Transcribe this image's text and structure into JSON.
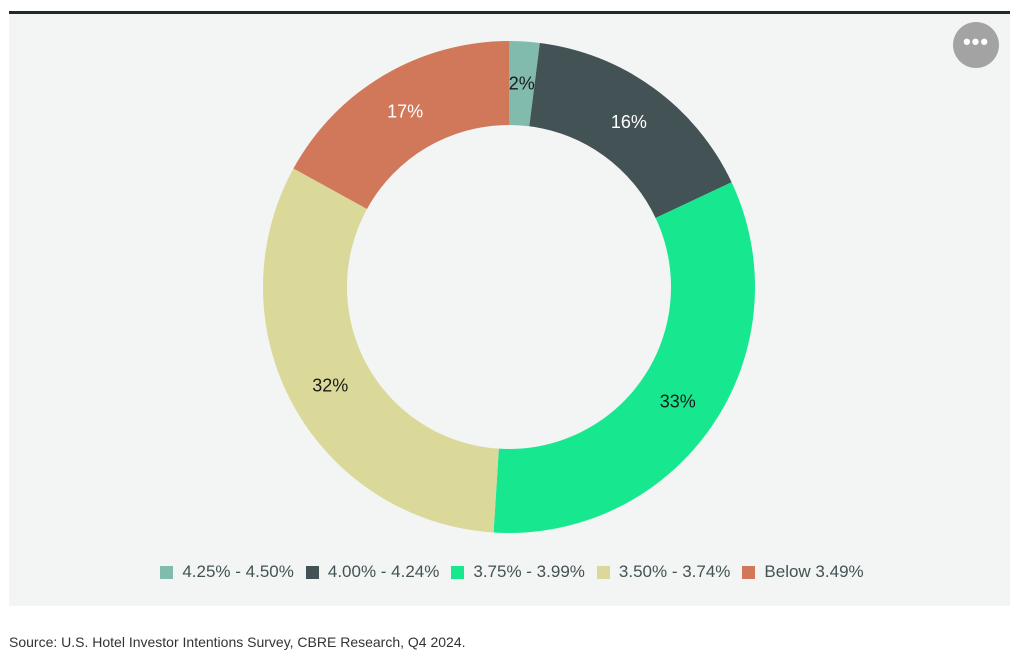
{
  "menu_button": {
    "icon": "more-horizontal-icon",
    "label": "•••"
  },
  "chart_data": {
    "type": "pie",
    "donut": true,
    "categories": [
      "4.25% - 4.50%",
      "4.00% - 4.24%",
      "3.75% - 3.99%",
      "3.50% - 3.74%",
      "Below 3.49%"
    ],
    "values": [
      2,
      16,
      33,
      32,
      17
    ],
    "data_labels": [
      "2%",
      "16%",
      "33%",
      "32%",
      "17%"
    ],
    "colors": [
      "#80bbad",
      "#435254",
      "#17e88f",
      "#dbd99a",
      "#d2785a"
    ],
    "label_colors": [
      "#1a1a1a",
      "#ffffff",
      "#1a1a1a",
      "#1a1a1a",
      "#ffffff"
    ],
    "legend_position": "bottom",
    "start_angle": "top",
    "direction": "clockwise"
  },
  "source": "Source: U.S. Hotel Investor Intentions Survey, CBRE Research, Q4 2024."
}
